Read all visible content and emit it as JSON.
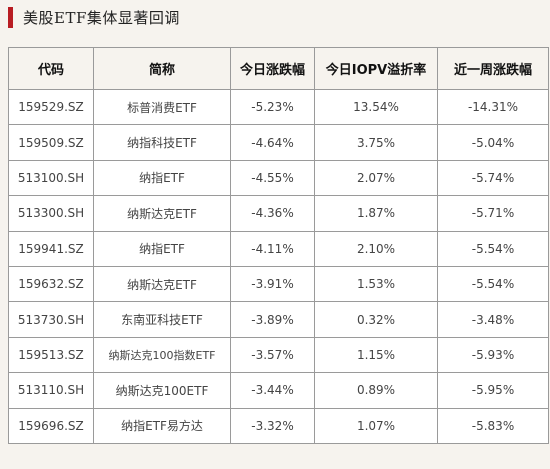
{
  "title": "美股ETF集体显著回调",
  "table": {
    "headers": [
      "代码",
      "简称",
      "今日涨跌幅",
      "今日IOPV溢折率",
      "近一周涨跌幅"
    ],
    "rows": [
      {
        "code": "159529.SZ",
        "name": "标普消费ETF",
        "change_today": "-5.23%",
        "iopv_premium": "13.54%",
        "change_week": "-14.31%"
      },
      {
        "code": "159509.SZ",
        "name": "纳指科技ETF",
        "change_today": "-4.64%",
        "iopv_premium": "3.75%",
        "change_week": "-5.04%"
      },
      {
        "code": "513100.SH",
        "name": "纳指ETF",
        "change_today": "-4.55%",
        "iopv_premium": "2.07%",
        "change_week": "-5.74%"
      },
      {
        "code": "513300.SH",
        "name": "纳斯达克ETF",
        "change_today": "-4.36%",
        "iopv_premium": "1.87%",
        "change_week": "-5.71%"
      },
      {
        "code": "159941.SZ",
        "name": "纳指ETF",
        "change_today": "-4.11%",
        "iopv_premium": "2.10%",
        "change_week": "-5.54%"
      },
      {
        "code": "159632.SZ",
        "name": "纳斯达克ETF",
        "change_today": "-3.91%",
        "iopv_premium": "1.53%",
        "change_week": "-5.54%"
      },
      {
        "code": "513730.SH",
        "name": "东南亚科技ETF",
        "change_today": "-3.89%",
        "iopv_premium": "0.32%",
        "change_week": "-3.48%"
      },
      {
        "code": "159513.SZ",
        "name": "纳斯达克100指数ETF",
        "change_today": "-3.57%",
        "iopv_premium": "1.15%",
        "change_week": "-5.93%"
      },
      {
        "code": "513110.SH",
        "name": "纳斯达克100ETF",
        "change_today": "-3.44%",
        "iopv_premium": "0.89%",
        "change_week": "-5.95%"
      },
      {
        "code": "159696.SZ",
        "name": "纳指ETF易方达",
        "change_today": "-3.32%",
        "iopv_premium": "1.07%",
        "change_week": "-5.83%"
      }
    ]
  },
  "colors": {
    "accent": "#b81c22",
    "background": "#f6f3ee",
    "border": "#9a9a9a"
  }
}
